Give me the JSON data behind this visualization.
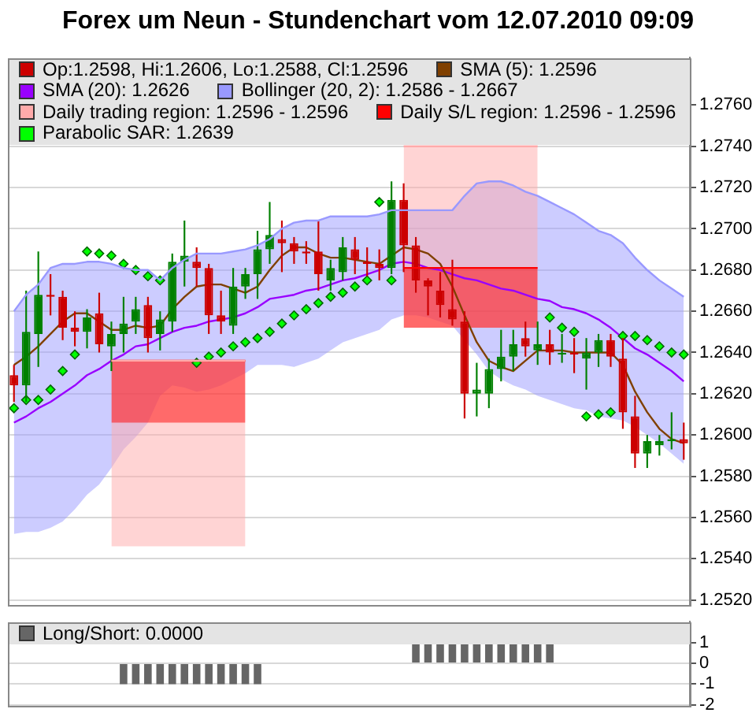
{
  "chart_data": [
    {
      "type": "candlestick",
      "title": "Forex um Neun - Stundenchart vom 12.07.2010 09:09",
      "categories": [
        null,
        null,
        null,
        null,
        null,
        null,
        null,
        null,
        null,
        null,
        null,
        null,
        null,
        null,
        null,
        null,
        null,
        null,
        null,
        null,
        null,
        null,
        null,
        null,
        null,
        null,
        null,
        null,
        null,
        null,
        null,
        null,
        null,
        null,
        null,
        null,
        null,
        null,
        null,
        null,
        null,
        null,
        null,
        null,
        null,
        null,
        null,
        null,
        null,
        null,
        null,
        null,
        null,
        null,
        null,
        null
      ],
      "series": [
        {
          "type": "candlestick",
          "name": "Op:1.2598, Hi:1.2606, Lo:1.2588, Cl:1.2596",
          "color": "#cc0000",
          "ohlc": [
            [
              1.2629,
              1.2634,
              1.2616,
              1.2624
            ],
            [
              1.2624,
              1.267,
              1.2616,
              1.265
            ],
            [
              1.2649,
              1.2689,
              1.2633,
              1.2668
            ],
            [
              1.2668,
              1.2678,
              1.2658,
              1.2667
            ],
            [
              1.2667,
              1.267,
              1.2646,
              1.2652
            ],
            [
              1.2652,
              1.266,
              1.2643,
              1.265
            ],
            [
              1.265,
              1.2661,
              1.2642,
              1.2657
            ],
            [
              1.2659,
              1.2669,
              1.264,
              1.2644
            ],
            [
              1.2643,
              1.2655,
              1.2631,
              1.2649
            ],
            [
              1.2649,
              1.2667,
              1.264,
              1.2654
            ],
            [
              1.2655,
              1.2667,
              1.2649,
              1.2661
            ],
            [
              1.2663,
              1.2667,
              1.264,
              1.2647
            ],
            [
              1.2649,
              1.266,
              1.2641,
              1.2656
            ],
            [
              1.2655,
              1.2688,
              1.265,
              1.2684
            ],
            [
              1.2684,
              1.2704,
              1.2672,
              1.2687
            ],
            [
              1.2684,
              1.2691,
              1.2672,
              1.2681
            ],
            [
              1.2681,
              1.2683,
              1.2649,
              1.2658
            ],
            [
              1.2658,
              1.267,
              1.2649,
              1.2655
            ],
            [
              1.2653,
              1.2681,
              1.2649,
              1.2672
            ],
            [
              1.2672,
              1.2681,
              1.2666,
              1.2678
            ],
            [
              1.2678,
              1.2699,
              1.2666,
              1.269
            ],
            [
              1.269,
              1.2713,
              1.2683,
              1.2697
            ],
            [
              1.2695,
              1.2704,
              1.2679,
              1.2693
            ],
            [
              1.2693,
              1.2696,
              1.2683,
              1.2689
            ],
            [
              1.2689,
              1.2694,
              1.2683,
              1.2688
            ],
            [
              1.2689,
              1.2704,
              1.267,
              1.2678
            ],
            [
              1.2675,
              1.2685,
              1.267,
              1.2681
            ],
            [
              1.2679,
              1.2696,
              1.2675,
              1.2691
            ],
            [
              1.269,
              1.2696,
              1.2678,
              1.2685
            ],
            [
              1.2684,
              1.2691,
              1.2677,
              1.2683
            ],
            [
              1.2683,
              1.269,
              1.2675,
              1.2681
            ],
            [
              1.2681,
              1.2723,
              1.2678,
              1.2714
            ],
            [
              1.2714,
              1.2722,
              1.2679,
              1.2692
            ],
            [
              1.2692,
              1.2696,
              1.2669,
              1.2675
            ],
            [
              1.2675,
              1.2676,
              1.2658,
              1.2672
            ],
            [
              1.267,
              1.2679,
              1.2657,
              1.2663
            ],
            [
              1.2661,
              1.2685,
              1.2653,
              1.2656
            ],
            [
              1.2655,
              1.266,
              1.2608,
              1.262
            ],
            [
              1.262,
              1.2635,
              1.2609,
              1.2622
            ],
            [
              1.262,
              1.2637,
              1.2613,
              1.2632
            ],
            [
              1.2632,
              1.2651,
              1.2626,
              1.2638
            ],
            [
              1.2638,
              1.2651,
              1.2631,
              1.2644
            ],
            [
              1.2647,
              1.2655,
              1.2638,
              1.2643
            ],
            [
              1.2641,
              1.2655,
              1.2634,
              1.2644
            ],
            [
              1.2644,
              1.2651,
              1.2634,
              1.264
            ],
            [
              1.2639,
              1.2649,
              1.2635,
              1.2639
            ],
            [
              1.264,
              1.2647,
              1.263,
              1.2639
            ],
            [
              1.2637,
              1.2647,
              1.2622,
              1.264
            ],
            [
              1.264,
              1.2649,
              1.2633,
              1.2646
            ],
            [
              1.2646,
              1.2649,
              1.2633,
              1.2638
            ],
            [
              1.2637,
              1.2647,
              1.2603,
              1.2611
            ],
            [
              1.2609,
              1.2619,
              1.2584,
              1.2591
            ],
            [
              1.2591,
              1.26,
              1.2584,
              1.2597
            ],
            [
              1.2595,
              1.26,
              1.259,
              1.2597
            ],
            [
              1.2597,
              1.2611,
              1.2593,
              1.2598
            ],
            [
              1.2598,
              1.2606,
              1.2588,
              1.2596
            ]
          ],
          "colors": [
            "#cc0000",
            "#008000",
            "#008000",
            "#cc0000",
            "#cc0000",
            "#cc0000",
            "#008000",
            "#cc0000",
            "#008000",
            "#008000",
            "#008000",
            "#cc0000",
            "#008000",
            "#008000",
            "#008000",
            "#cc0000",
            "#cc0000",
            "#cc0000",
            "#008000",
            "#008000",
            "#008000",
            "#008000",
            "#cc0000",
            "#cc0000",
            "#cc0000",
            "#cc0000",
            "#008000",
            "#008000",
            "#cc0000",
            "#cc0000",
            "#cc0000",
            "#008000",
            "#cc0000",
            "#cc0000",
            "#cc0000",
            "#cc0000",
            "#cc0000",
            "#cc0000",
            "#008000",
            "#008000",
            "#008000",
            "#008000",
            "#cc0000",
            "#008000",
            "#cc0000",
            "#008000",
            "#cc0000",
            "#008000",
            "#008000",
            "#cc0000",
            "#cc0000",
            "#cc0000",
            "#008000",
            "#008000",
            "#008000",
            "#cc0000"
          ]
        },
        {
          "type": "line",
          "name": "SMA (5): 1.2596",
          "color": "#804000",
          "marker": "none",
          "values": [
            1.2634,
            1.2638,
            1.2643,
            1.2649,
            1.2655,
            1.2659,
            1.2659,
            1.2655,
            1.2651,
            1.2651,
            1.2653,
            1.2652,
            1.2653,
            1.2661,
            1.2667,
            1.2672,
            1.2673,
            1.2673,
            1.2671,
            1.2669,
            1.2672,
            1.268,
            1.2687,
            1.2691,
            1.2691,
            1.2688,
            1.2686,
            1.2686,
            1.2685,
            1.2684,
            1.2683,
            1.2687,
            1.2691,
            1.269,
            1.2688,
            1.2683,
            1.2672,
            1.2658,
            1.2645,
            1.2636,
            1.2633,
            1.2631,
            1.2636,
            1.2641,
            1.2641,
            1.2641,
            1.264,
            1.264,
            1.264,
            1.264,
            1.2634,
            1.2621,
            1.2611,
            1.2603,
            1.2598,
            1.2596
          ]
        },
        {
          "type": "line",
          "name": "SMA (20): 1.2626",
          "color": "#9900ff",
          "marker": "none",
          "values": [
            1.2606,
            1.2609,
            1.2613,
            1.2616,
            1.262,
            1.2624,
            1.2629,
            1.2632,
            1.2636,
            1.2639,
            1.2643,
            1.2644,
            1.2647,
            1.265,
            1.2652,
            1.2653,
            1.2655,
            1.2656,
            1.2657,
            1.2659,
            1.2662,
            1.2666,
            1.2667,
            1.2668,
            1.267,
            1.2671,
            1.2673,
            1.2675,
            1.2676,
            1.2678,
            1.268,
            1.2683,
            1.2684,
            1.2683,
            1.2681,
            1.268,
            1.2678,
            1.2676,
            1.2675,
            1.2673,
            1.2671,
            1.267,
            1.2668,
            1.2666,
            1.2665,
            1.2662,
            1.2661,
            1.2659,
            1.2656,
            1.2652,
            1.2647,
            1.2642,
            1.2639,
            1.2635,
            1.2631,
            1.2626
          ]
        },
        {
          "type": "line",
          "name": "Bollinger (20, 2): 1.2586 - 1.2667",
          "color": "#9999ff",
          "marker": "none",
          "upper": [
            1.266,
            1.2668,
            1.2673,
            1.2681,
            1.2683,
            1.2683,
            1.2684,
            1.2684,
            1.2683,
            1.2681,
            1.268,
            1.268,
            1.2675,
            1.2681,
            1.2685,
            1.2688,
            1.2688,
            1.2688,
            1.2689,
            1.269,
            1.2692,
            1.2695,
            1.27,
            1.2703,
            1.2704,
            1.2704,
            1.2706,
            1.2706,
            1.2706,
            1.2706,
            1.2707,
            1.2709,
            1.2709,
            1.2709,
            1.2709,
            1.2709,
            1.2709,
            1.2716,
            1.2722,
            1.2723,
            1.2723,
            1.2721,
            1.2718,
            1.2716,
            1.2713,
            1.271,
            1.2707,
            1.2703,
            1.2699,
            1.2697,
            1.2693,
            1.2686,
            1.268,
            1.2675,
            1.2671,
            1.2667
          ],
          "values": [
            1.266,
            1.2668,
            1.2673,
            1.2681,
            1.2683,
            1.2683,
            1.2684,
            1.2684,
            1.2683,
            1.2681,
            1.268,
            1.268,
            1.2675,
            1.2681,
            1.2685,
            1.2688,
            1.2688,
            1.2688,
            1.2689,
            1.269,
            1.2692,
            1.2695,
            1.27,
            1.2703,
            1.2704,
            1.2704,
            1.2706,
            1.2706,
            1.2706,
            1.2706,
            1.2707,
            1.2709,
            1.2709,
            1.2709,
            1.2709,
            1.2709,
            1.2709,
            1.2716,
            1.2722,
            1.2723,
            1.2723,
            1.2721,
            1.2718,
            1.2716,
            1.2713,
            1.271,
            1.2707,
            1.2703,
            1.2699,
            1.2697,
            1.2693,
            1.2686,
            1.268,
            1.2675,
            1.2671,
            1.2667
          ],
          "lower": [
            1.2552,
            1.2553,
            1.2553,
            1.2555,
            1.2558,
            1.2564,
            1.2571,
            1.2576,
            1.2584,
            1.2593,
            1.2599,
            1.2606,
            1.2619,
            1.2624,
            1.2623,
            1.2621,
            1.2622,
            1.2624,
            1.2627,
            1.263,
            1.2634,
            1.2634,
            1.2634,
            1.2633,
            1.2635,
            1.2637,
            1.2641,
            1.2645,
            1.2647,
            1.2649,
            1.2651,
            1.2656,
            1.2658,
            1.2658,
            1.2657,
            1.2655,
            1.2653,
            1.2646,
            1.2639,
            1.2631,
            1.2627,
            1.2624,
            1.2622,
            1.2619,
            1.2617,
            1.2615,
            1.2613,
            1.2612,
            1.2609,
            1.2608,
            1.2607,
            1.2604,
            1.26,
            1.2596,
            1.2591,
            1.2586
          ]
        },
        {
          "type": "line",
          "name": "Daily trading region: 1.2596 - 1.2596",
          "color": "#ffaaaa",
          "marker": "none",
          "upper": [
            null,
            null,
            null,
            null,
            null,
            null,
            null,
            null,
            1.2636,
            1.2636,
            1.2636,
            1.2636,
            1.2636,
            1.2636,
            1.2636,
            1.2636,
            1.2636,
            1.2636,
            1.2636,
            1.2636,
            null,
            null,
            null,
            null,
            null,
            null,
            null,
            null,
            null,
            null,
            null,
            null,
            1.274,
            1.274,
            1.274,
            1.274,
            1.274,
            1.274,
            1.274,
            1.274,
            1.274,
            1.274,
            1.274,
            1.274,
            null,
            null,
            null,
            null,
            null,
            null,
            null,
            null,
            null,
            null,
            null,
            null
          ],
          "values": [
            null,
            null,
            null,
            null,
            null,
            null,
            null,
            null,
            1.2636,
            1.2636,
            1.2636,
            1.2636,
            1.2636,
            1.2636,
            1.2636,
            1.2636,
            1.2636,
            1.2636,
            1.2636,
            1.2636,
            null,
            null,
            null,
            null,
            null,
            null,
            null,
            null,
            null,
            null,
            null,
            null,
            1.274,
            1.274,
            1.274,
            1.274,
            1.274,
            1.274,
            1.274,
            1.274,
            1.274,
            1.274,
            1.274,
            1.274,
            null,
            null,
            null,
            null,
            null,
            null,
            null,
            null,
            null,
            null,
            null,
            null
          ],
          "lower": [
            null,
            null,
            null,
            null,
            null,
            null,
            null,
            null,
            1.2546,
            1.2546,
            1.2546,
            1.2546,
            1.2546,
            1.2546,
            1.2546,
            1.2546,
            1.2546,
            1.2546,
            1.2546,
            1.2546,
            null,
            null,
            null,
            null,
            null,
            null,
            null,
            null,
            null,
            null,
            null,
            null,
            1.2652,
            1.2652,
            1.2652,
            1.2652,
            1.2652,
            1.2652,
            1.2652,
            1.2652,
            1.2652,
            1.2652,
            1.2652,
            1.2652,
            null,
            null,
            null,
            null,
            null,
            null,
            null,
            null,
            null,
            null,
            null,
            null
          ]
        },
        {
          "type": "line",
          "name": "Daily S/L region: 1.2596 - 1.2596",
          "color": "#ff0000",
          "marker": "none",
          "upper": [
            null,
            null,
            null,
            null,
            null,
            null,
            null,
            null,
            1.2636,
            1.2636,
            1.2636,
            1.2636,
            1.2636,
            1.2636,
            1.2636,
            1.2636,
            1.2636,
            1.2636,
            1.2636,
            1.2636,
            null,
            null,
            null,
            null,
            null,
            null,
            null,
            null,
            null,
            null,
            null,
            null,
            1.2681,
            1.2681,
            1.2681,
            1.2681,
            1.2681,
            1.2681,
            1.2681,
            1.2681,
            1.2681,
            1.2681,
            1.2681,
            1.2681,
            null,
            null,
            null,
            null,
            null,
            null,
            null,
            null,
            null,
            null,
            null,
            null
          ],
          "values": [
            null,
            null,
            null,
            null,
            null,
            null,
            null,
            null,
            1.2636,
            1.2636,
            1.2636,
            1.2636,
            1.2636,
            1.2636,
            1.2636,
            1.2636,
            1.2636,
            1.2636,
            1.2636,
            1.2636,
            null,
            null,
            null,
            null,
            null,
            null,
            null,
            null,
            null,
            null,
            null,
            null,
            1.2681,
            1.2681,
            1.2681,
            1.2681,
            1.2681,
            1.2681,
            1.2681,
            1.2681,
            1.2681,
            1.2681,
            1.2681,
            1.2681,
            null,
            null,
            null,
            null,
            null,
            null,
            null,
            null,
            null,
            null,
            null,
            null
          ],
          "lower": [
            null,
            null,
            null,
            null,
            null,
            null,
            null,
            null,
            1.2606,
            1.2606,
            1.2606,
            1.2606,
            1.2606,
            1.2606,
            1.2606,
            1.2606,
            1.2606,
            1.2606,
            1.2606,
            1.2606,
            null,
            null,
            null,
            null,
            null,
            null,
            null,
            null,
            null,
            null,
            null,
            null,
            1.2652,
            1.2652,
            1.2652,
            1.2652,
            1.2652,
            1.2652,
            1.2652,
            1.2652,
            1.2652,
            1.2652,
            1.2652,
            1.2652,
            null,
            null,
            null,
            null,
            null,
            null,
            null,
            null,
            null,
            null,
            null,
            null
          ]
        },
        {
          "type": "scatter",
          "name": "Parabolic SAR: 1.2639",
          "color": "#00ff00",
          "marker": "diamond",
          "values": [
            1.2613,
            1.2617,
            1.2617,
            1.2622,
            1.2631,
            1.2639,
            1.2689,
            1.2688,
            1.2687,
            1.2683,
            1.268,
            1.2677,
            1.2675,
            null,
            null,
            1.2635,
            1.2638,
            1.264,
            1.2643,
            1.2645,
            1.2647,
            1.265,
            1.2654,
            1.2658,
            1.2661,
            1.2664,
            1.2667,
            1.2669,
            1.2672,
            1.2675,
            1.2713,
            1.2675,
            null,
            null,
            null,
            null,
            null,
            null,
            null,
            null,
            null,
            null,
            null,
            null,
            1.2657,
            1.2652,
            1.265,
            1.2609,
            1.261,
            1.2611,
            1.2648,
            1.2648,
            1.2646,
            1.2643,
            1.264,
            1.2639
          ]
        }
      ],
      "ylim": [
        1.2518,
        1.2783
      ],
      "yticks": [
        {
          "value": 1.252,
          "label": "1.2520"
        },
        {
          "value": 1.254,
          "label": "1.2540"
        },
        {
          "value": 1.256,
          "label": "1.2560"
        },
        {
          "value": 1.258,
          "label": "1.2580"
        },
        {
          "value": 1.26,
          "label": "1.2600"
        },
        {
          "value": 1.262,
          "label": "1.2620"
        },
        {
          "value": 1.264,
          "label": "1.2640"
        },
        {
          "value": 1.266,
          "label": "1.2660"
        },
        {
          "value": 1.268,
          "label": "1.2680"
        },
        {
          "value": 1.27,
          "label": "1.2700"
        },
        {
          "value": 1.272,
          "label": "1.2720"
        },
        {
          "value": 1.274,
          "label": "1.2740"
        },
        {
          "value": 1.276,
          "label": "1.2760"
        }
      ],
      "grid": "y",
      "legend": "top left",
      "tick_labels": "y"
    },
    {
      "type": "bar",
      "categories": [
        null,
        null,
        null,
        null,
        null,
        null,
        null,
        null,
        null,
        null,
        null,
        null,
        null,
        null,
        null,
        null,
        null,
        null,
        null,
        null,
        null,
        null,
        null,
        null,
        null,
        null,
        null,
        null,
        null,
        null,
        null,
        null,
        null,
        null,
        null,
        null,
        null,
        null,
        null,
        null,
        null,
        null,
        null,
        null,
        null,
        null,
        null,
        null,
        null,
        null,
        null,
        null,
        null,
        null,
        null,
        null
      ],
      "series": [
        {
          "name": "Long/Short: 0.0000",
          "color": "#666666",
          "values": [
            0,
            0,
            0,
            0,
            0,
            0,
            0,
            0,
            0,
            -1,
            -1,
            -1,
            -1,
            -1,
            -1,
            -1,
            -1,
            -1,
            -1,
            -1,
            -1,
            0,
            0,
            0,
            0,
            0,
            0,
            0,
            0,
            0,
            0,
            0,
            0,
            1,
            1,
            1,
            1,
            1,
            1,
            1,
            1,
            1,
            1,
            1,
            1,
            0,
            0,
            0,
            0,
            0,
            0,
            0,
            0,
            0,
            0,
            0
          ]
        }
      ],
      "ylim": [
        -2,
        2
      ],
      "yticks": [
        -2,
        -1,
        0,
        1
      ],
      "grid": "y",
      "legend": "top left",
      "tick_labels": "y"
    }
  ]
}
